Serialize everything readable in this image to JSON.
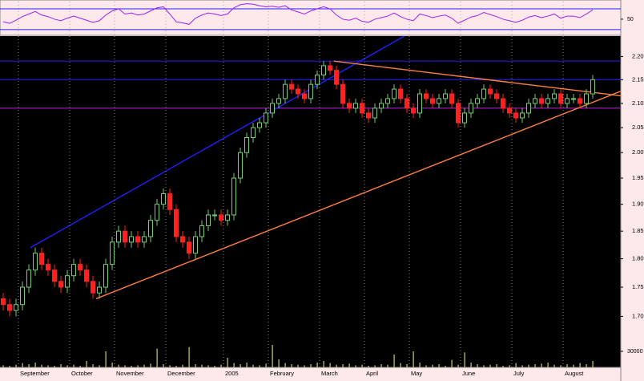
{
  "chart_data": {
    "type": "candlestick",
    "log_scale": true,
    "up_color": "#70d070",
    "down_color": "#ff2020",
    "categories": [
      null,
      null,
      null,
      "September",
      null,
      null,
      null,
      null,
      null,
      null,
      null,
      "October",
      null,
      null,
      null,
      null,
      null,
      null,
      "November",
      null,
      null,
      null,
      null,
      null,
      null,
      null,
      "December",
      null,
      null,
      null,
      null,
      null,
      null,
      null,
      null,
      "2005",
      null,
      null,
      null,
      null,
      null,
      null,
      "February",
      null,
      null,
      null,
      null,
      null,
      null,
      null,
      "March",
      null,
      null,
      null,
      null,
      null,
      null,
      "April",
      null,
      null,
      null,
      null,
      null,
      null,
      "May",
      null,
      null,
      null,
      null,
      null,
      null,
      null,
      "June",
      null,
      null,
      null,
      null,
      null,
      null,
      null,
      "July",
      null,
      null,
      null,
      null,
      null,
      null,
      null,
      "August",
      null,
      null,
      null,
      null
    ],
    "open": [
      1.73,
      1.72,
      1.71,
      1.72,
      1.75,
      1.78,
      1.81,
      1.79,
      1.78,
      1.76,
      1.75,
      1.77,
      1.79,
      1.78,
      1.76,
      1.74,
      1.75,
      1.79,
      1.83,
      1.85,
      1.83,
      1.84,
      1.83,
      1.84,
      1.87,
      1.9,
      1.92,
      1.89,
      1.84,
      1.83,
      1.81,
      1.84,
      1.86,
      1.88,
      1.88,
      1.87,
      1.88,
      1.95,
      2.0,
      2.03,
      2.05,
      2.06,
      2.08,
      2.1,
      2.11,
      2.14,
      2.13,
      2.12,
      2.11,
      2.14,
      2.16,
      2.18,
      2.17,
      2.14,
      2.1,
      2.09,
      2.1,
      2.08,
      2.07,
      2.09,
      2.1,
      2.11,
      2.13,
      2.11,
      2.09,
      2.08,
      2.12,
      2.11,
      2.1,
      2.11,
      2.12,
      2.1,
      2.06,
      2.08,
      2.1,
      2.11,
      2.13,
      2.12,
      2.11,
      2.09,
      2.08,
      2.07,
      2.08,
      2.1,
      2.11,
      2.1,
      2.11,
      2.12,
      2.1,
      2.11,
      2.11,
      2.1,
      2.12
    ],
    "high": [
      1.74,
      1.73,
      1.73,
      1.76,
      1.79,
      1.82,
      1.82,
      1.8,
      1.79,
      1.77,
      1.78,
      1.8,
      1.8,
      1.79,
      1.77,
      1.76,
      1.8,
      1.84,
      1.86,
      1.86,
      1.85,
      1.85,
      1.85,
      1.88,
      1.91,
      1.93,
      1.93,
      1.9,
      1.85,
      1.84,
      1.85,
      1.87,
      1.89,
      1.89,
      1.89,
      1.89,
      1.96,
      2.01,
      2.04,
      2.06,
      2.07,
      2.09,
      2.11,
      2.12,
      2.15,
      2.15,
      2.14,
      2.13,
      2.15,
      2.17,
      2.19,
      2.19,
      2.18,
      2.15,
      2.11,
      2.11,
      2.11,
      2.09,
      2.1,
      2.11,
      2.12,
      2.14,
      2.14,
      2.12,
      2.1,
      2.13,
      2.13,
      2.12,
      2.12,
      2.13,
      2.13,
      2.11,
      2.09,
      2.11,
      2.12,
      2.14,
      2.14,
      2.13,
      2.12,
      2.1,
      2.09,
      2.09,
      2.11,
      2.12,
      2.12,
      2.12,
      2.13,
      2.13,
      2.12,
      2.12,
      2.12,
      2.13,
      2.16
    ],
    "low": [
      1.71,
      1.7,
      1.7,
      1.71,
      1.74,
      1.77,
      1.78,
      1.77,
      1.75,
      1.74,
      1.74,
      1.76,
      1.77,
      1.75,
      1.73,
      1.73,
      1.74,
      1.78,
      1.82,
      1.82,
      1.82,
      1.82,
      1.82,
      1.83,
      1.86,
      1.89,
      1.88,
      1.83,
      1.82,
      1.8,
      1.8,
      1.83,
      1.85,
      1.87,
      1.86,
      1.86,
      1.87,
      1.94,
      1.99,
      2.02,
      2.04,
      2.05,
      2.07,
      2.09,
      2.1,
      2.12,
      2.11,
      2.1,
      2.1,
      2.13,
      2.15,
      2.16,
      2.13,
      2.09,
      2.08,
      2.08,
      2.07,
      2.06,
      2.06,
      2.08,
      2.09,
      2.1,
      2.1,
      2.08,
      2.07,
      2.07,
      2.1,
      2.09,
      2.09,
      2.1,
      2.09,
      2.05,
      2.05,
      2.07,
      2.09,
      2.1,
      2.11,
      2.1,
      2.08,
      2.07,
      2.06,
      2.06,
      2.07,
      2.09,
      2.09,
      2.09,
      2.1,
      2.09,
      2.09,
      2.1,
      2.09,
      2.09,
      2.11
    ],
    "close": [
      1.72,
      1.71,
      1.72,
      1.75,
      1.78,
      1.81,
      1.79,
      1.78,
      1.76,
      1.75,
      1.77,
      1.79,
      1.78,
      1.76,
      1.74,
      1.75,
      1.79,
      1.83,
      1.85,
      1.83,
      1.84,
      1.83,
      1.84,
      1.87,
      1.9,
      1.92,
      1.89,
      1.84,
      1.83,
      1.81,
      1.84,
      1.86,
      1.88,
      1.88,
      1.87,
      1.88,
      1.95,
      2.0,
      2.03,
      2.05,
      2.06,
      2.08,
      2.1,
      2.11,
      2.14,
      2.13,
      2.12,
      2.11,
      2.14,
      2.16,
      2.18,
      2.17,
      2.14,
      2.1,
      2.09,
      2.1,
      2.08,
      2.07,
      2.09,
      2.1,
      2.11,
      2.13,
      2.11,
      2.09,
      2.08,
      2.12,
      2.11,
      2.1,
      2.11,
      2.12,
      2.1,
      2.06,
      2.08,
      2.1,
      2.11,
      2.13,
      2.12,
      2.11,
      2.09,
      2.08,
      2.07,
      2.08,
      2.1,
      2.11,
      2.1,
      2.11,
      2.12,
      2.1,
      2.11,
      2.11,
      2.1,
      2.12,
      2.15
    ],
    "ylim": [
      1.62,
      2.245
    ],
    "yticks": [
      {
        "value": 1.7,
        "label": "1.70"
      },
      {
        "value": 1.75,
        "label": "1.75"
      },
      {
        "value": 1.8,
        "label": "1.80"
      },
      {
        "value": 1.85,
        "label": "1.85"
      },
      {
        "value": 1.9,
        "label": "1.90"
      },
      {
        "value": 1.95,
        "label": "1.95"
      },
      {
        "value": 2.0,
        "label": "2.00"
      },
      {
        "value": 2.05,
        "label": "2.05"
      },
      {
        "value": 2.1,
        "label": "2.10"
      },
      {
        "value": 2.15,
        "label": "2.15"
      },
      {
        "value": 2.2,
        "label": "2.20"
      }
    ],
    "levels": [
      {
        "value": 2.19,
        "color": "#2020ff"
      },
      {
        "value": 2.15,
        "color": "#2020ff"
      },
      {
        "value": 2.09,
        "color": "#c020e0"
      }
    ],
    "trendlines": [
      {
        "from": [
          4.25,
          1.82
        ],
        "to": [
          62.6,
          2.245
        ],
        "color": "#2020ff"
      },
      {
        "from": [
          14.5,
          1.73
        ],
        "to": [
          100,
          2.145
        ],
        "color": "#ff8040"
      },
      {
        "from": [
          51.6,
          2.19
        ],
        "to": [
          100,
          2.11
        ],
        "color": "#ff8040"
      }
    ],
    "volume": {
      "color": "#d0d060",
      "ylim": [
        0,
        60000
      ],
      "yticks": [
        30000
      ],
      "values": [
        4000,
        3000,
        5000,
        8000,
        6000,
        9000,
        5000,
        4000,
        3000,
        6000,
        4000,
        5000,
        3000,
        12000,
        6000,
        4000,
        30000,
        9000,
        5000,
        4000,
        3000,
        4000,
        5000,
        7000,
        35000,
        6000,
        4000,
        3000,
        5000,
        38000,
        6000,
        5000,
        4000,
        3000,
        5000,
        18000,
        8000,
        6000,
        9000,
        5000,
        4000,
        7000,
        42000,
        15000,
        8000,
        6000,
        5000,
        4000,
        6000,
        9000,
        12000,
        8000,
        5000,
        6000,
        7000,
        4000,
        5000,
        3000,
        4000,
        6000,
        5000,
        24000,
        8000,
        6000,
        30000,
        9000,
        4000,
        5000,
        6000,
        3000,
        14000,
        5000,
        28000,
        9000,
        6000,
        4000,
        5000,
        6000,
        3000,
        4000,
        8000,
        4000,
        5000,
        6000,
        7000,
        9000,
        5000,
        4000,
        6000,
        5000,
        8000,
        6000,
        12000
      ]
    },
    "rsi": {
      "color": "#a020f0",
      "ylim": [
        22,
        84
      ],
      "yticks": [
        50
      ],
      "levels": [
        30,
        70
      ],
      "level_color": "#2020ff",
      "values": [
        45,
        42,
        48,
        55,
        60,
        65,
        58,
        55,
        50,
        47,
        52,
        56,
        52,
        48,
        44,
        47,
        58,
        66,
        70,
        60,
        62,
        58,
        60,
        66,
        72,
        74,
        60,
        45,
        43,
        40,
        52,
        58,
        62,
        60,
        57,
        60,
        72,
        78,
        80,
        79,
        76,
        74,
        75,
        73,
        76,
        68,
        64,
        60,
        66,
        70,
        74,
        70,
        58,
        50,
        48,
        52,
        46,
        44,
        50,
        53,
        56,
        62,
        55,
        50,
        47,
        60,
        57,
        53,
        56,
        58,
        52,
        42,
        48,
        54,
        57,
        63,
        59,
        55,
        50,
        47,
        44,
        48,
        54,
        57,
        53,
        56,
        60,
        52,
        56,
        56,
        53,
        60,
        68
      ]
    }
  }
}
